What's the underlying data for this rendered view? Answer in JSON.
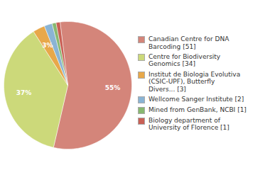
{
  "chart_data": {
    "type": "pie",
    "categories": [
      "Canadian Centre for DNA\nBarcoding [51]",
      "Centre for Biodiversity\nGenomics [34]",
      "Institut de Biologia Evolutiva\n(CSIC-UPF), Butterfly\nDivers... [3]",
      "Wellcome Sanger Institute [2]",
      "Mined from GenBank, NCBI [1]",
      "Biology department of\nUniversity of Florence [1]"
    ],
    "values": [
      55,
      37,
      3,
      2,
      1,
      1
    ],
    "value_labels": [
      "55%",
      "37%",
      "3%",
      null,
      null,
      null
    ],
    "data_labels": true,
    "colors": [
      "#d4857a",
      "#ccd97a",
      "#e8a84a",
      "#8ab4d4",
      "#88b870",
      "#c96055"
    ],
    "legend": "right"
  }
}
